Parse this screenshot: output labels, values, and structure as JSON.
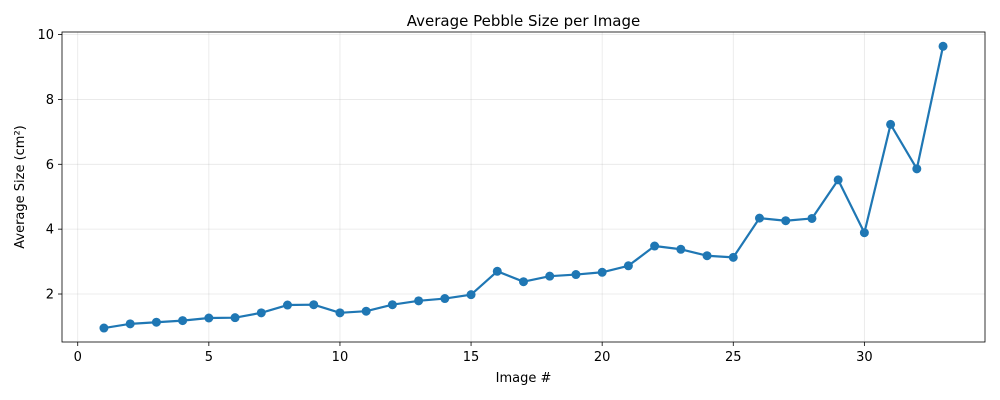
{
  "chart_data": {
    "type": "line",
    "title": "Average Pebble Size per Image",
    "xlabel": "Image #",
    "ylabel": "Average Size (cm²)",
    "xlim": [
      -0.6,
      34.6
    ],
    "ylim": [
      0.52,
      10.08
    ],
    "xticks": [
      0,
      5,
      10,
      15,
      20,
      25,
      30
    ],
    "yticks": [
      2,
      4,
      6,
      8,
      10
    ],
    "grid": true,
    "legend": "none",
    "color": "#1f77b4",
    "marker": "circle",
    "x": [
      1,
      2,
      3,
      4,
      5,
      6,
      7,
      8,
      9,
      10,
      11,
      12,
      13,
      14,
      15,
      16,
      17,
      18,
      19,
      20,
      21,
      22,
      23,
      24,
      25,
      26,
      27,
      28,
      29,
      30,
      31,
      32,
      33
    ],
    "y": [
      0.95,
      1.08,
      1.13,
      1.18,
      1.26,
      1.27,
      1.42,
      1.66,
      1.67,
      1.42,
      1.47,
      1.67,
      1.79,
      1.86,
      1.98,
      2.7,
      2.38,
      2.55,
      2.6,
      2.67,
      2.87,
      3.48,
      3.38,
      3.18,
      3.13,
      4.34,
      4.26,
      4.33,
      5.52,
      3.89,
      7.23,
      5.86,
      9.64
    ]
  }
}
